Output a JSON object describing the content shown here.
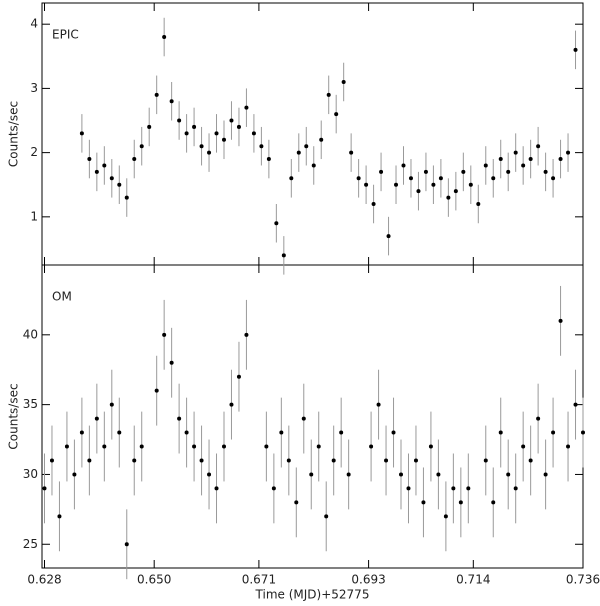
{
  "chart_data": [
    {
      "type": "scatter",
      "label": "EPIC",
      "ylabel": "Counts/sec",
      "color": "#000000",
      "error_color": "#999999",
      "xlim": [
        0.6275,
        0.736
      ],
      "ylim": [
        0.25,
        4.33
      ],
      "yticks": [
        1,
        2,
        3,
        4
      ],
      "err": 0.3,
      "x": [
        0.6355,
        0.637,
        0.6385,
        0.64,
        0.6415,
        0.643,
        0.6445,
        0.646,
        0.6475,
        0.649,
        0.6505,
        0.652,
        0.6535,
        0.655,
        0.6565,
        0.658,
        0.6595,
        0.661,
        0.6625,
        0.664,
        0.6655,
        0.667,
        0.6685,
        0.67,
        0.6715,
        0.673,
        0.6745,
        0.676,
        0.6775,
        0.679,
        0.6805,
        0.682,
        0.6835,
        0.685,
        0.6865,
        0.688,
        0.6895,
        0.691,
        0.6925,
        0.694,
        0.6955,
        0.697,
        0.6985,
        0.7,
        0.7015,
        0.703,
        0.7045,
        0.706,
        0.7075,
        0.709,
        0.7105,
        0.712,
        0.7135,
        0.715,
        0.7165,
        0.718,
        0.7195,
        0.721,
        0.7225,
        0.724,
        0.7255,
        0.727,
        0.7285,
        0.73,
        0.7315,
        0.733,
        0.7345
      ],
      "y": [
        2.3,
        1.9,
        1.7,
        1.8,
        1.6,
        1.5,
        1.3,
        1.9,
        2.1,
        2.4,
        2.9,
        3.8,
        2.8,
        2.5,
        2.3,
        2.4,
        2.1,
        2.0,
        2.3,
        2.2,
        2.5,
        2.4,
        2.7,
        2.3,
        2.1,
        1.9,
        0.9,
        0.4,
        1.6,
        2.0,
        2.1,
        1.8,
        2.2,
        2.9,
        2.6,
        3.1,
        2.0,
        1.6,
        1.5,
        1.2,
        1.7,
        0.7,
        1.5,
        1.8,
        1.6,
        1.4,
        1.7,
        1.5,
        1.6,
        1.3,
        1.4,
        1.7,
        1.5,
        1.2,
        1.8,
        1.6,
        1.9,
        1.7,
        2.0,
        1.8,
        1.9,
        2.1,
        1.7,
        1.6,
        1.9,
        2.0,
        3.6
      ]
    },
    {
      "type": "scatter",
      "label": "OM",
      "ylabel": "Counts/sec",
      "xlabel": "Time (MJD)+52775",
      "color": "#000000",
      "error_color": "#999999",
      "xlim": [
        0.6275,
        0.736
      ],
      "ylim": [
        23.3,
        45
      ],
      "yticks": [
        25,
        30,
        35,
        40
      ],
      "err": 2.5,
      "xticks": [
        0.628,
        {
          "value": 0.65,
          "label": "0.650"
        },
        0.671,
        0.693,
        0.714,
        0.736
      ],
      "x": [
        0.628,
        0.6295,
        0.631,
        0.6325,
        0.634,
        0.6355,
        0.637,
        0.6385,
        0.64,
        0.6415,
        0.643,
        0.6445,
        0.646,
        0.6475,
        0.6505,
        0.652,
        0.6535,
        0.655,
        0.6565,
        0.658,
        0.6595,
        0.661,
        0.6625,
        0.664,
        0.6655,
        0.667,
        0.6685,
        0.6725,
        0.674,
        0.6755,
        0.677,
        0.6785,
        0.68,
        0.6815,
        0.683,
        0.6845,
        0.686,
        0.6875,
        0.689,
        0.6935,
        0.695,
        0.6965,
        0.698,
        0.6995,
        0.701,
        0.7025,
        0.704,
        0.7055,
        0.707,
        0.7085,
        0.71,
        0.7115,
        0.713,
        0.7165,
        0.718,
        0.7195,
        0.721,
        0.7225,
        0.724,
        0.7255,
        0.727,
        0.7285,
        0.73,
        0.7315,
        0.733,
        0.7345,
        0.736
      ],
      "y": [
        29,
        31,
        27,
        32,
        30,
        33,
        31,
        34,
        32,
        35,
        33,
        25,
        31,
        32,
        36,
        40,
        38,
        34,
        33,
        32,
        31,
        30,
        29,
        32,
        35,
        37,
        40,
        32,
        29,
        33,
        31,
        28,
        34,
        30,
        32,
        27,
        31,
        33,
        30,
        32,
        35,
        31,
        33,
        30,
        29,
        31,
        28,
        32,
        30,
        27,
        29,
        28,
        29,
        31,
        28,
        33,
        30,
        29,
        32,
        31,
        34,
        30,
        33,
        41,
        32,
        35,
        33
      ]
    }
  ]
}
